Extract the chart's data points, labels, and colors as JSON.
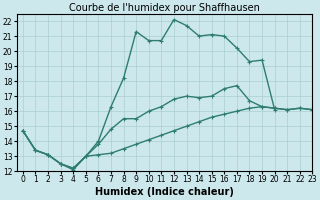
{
  "title": "Courbe de l'humidex pour Shaffhausen",
  "xlabel": "Humidex (Indice chaleur)",
  "xlim": [
    -0.5,
    23
  ],
  "ylim": [
    12,
    22.5
  ],
  "xticks": [
    0,
    1,
    2,
    3,
    4,
    5,
    6,
    7,
    8,
    9,
    10,
    11,
    12,
    13,
    14,
    15,
    16,
    17,
    18,
    19,
    20,
    21,
    22,
    23
  ],
  "yticks": [
    12,
    13,
    14,
    15,
    16,
    17,
    18,
    19,
    20,
    21,
    22
  ],
  "line_color": "#2e7d6e",
  "bg_color": "#cce8ec",
  "grid_color": "#aacdd2",
  "line1_x": [
    0,
    1,
    2,
    3,
    4,
    5,
    6,
    7,
    8,
    9,
    10,
    11,
    12,
    13,
    14,
    15,
    16,
    17,
    18,
    19,
    20
  ],
  "line1_y": [
    14.7,
    13.4,
    13.1,
    12.5,
    12.1,
    13.0,
    14.0,
    16.3,
    18.2,
    21.3,
    20.7,
    20.7,
    22.1,
    21.7,
    21.0,
    21.1,
    21.0,
    20.2,
    19.3,
    19.4,
    16.1
  ],
  "line2_x": [
    0,
    1,
    2,
    3,
    4,
    5,
    6,
    7,
    8,
    9,
    10,
    11,
    12,
    13,
    14,
    15,
    16,
    17,
    18,
    19,
    20,
    21,
    22,
    23
  ],
  "line2_y": [
    14.7,
    13.4,
    13.1,
    12.5,
    12.2,
    13.0,
    13.1,
    13.2,
    13.5,
    13.8,
    14.1,
    14.4,
    14.7,
    15.0,
    15.3,
    15.6,
    15.8,
    16.0,
    16.2,
    16.3,
    16.2,
    16.1,
    16.2,
    16.1
  ],
  "line3_x": [
    0,
    1,
    2,
    3,
    4,
    5,
    6,
    7,
    8,
    9,
    10,
    11,
    12,
    13,
    14,
    15,
    16,
    17,
    18,
    19,
    20,
    21,
    22,
    23
  ],
  "line3_y": [
    14.7,
    13.4,
    13.1,
    12.5,
    12.2,
    13.0,
    13.8,
    14.8,
    15.5,
    15.5,
    16.0,
    16.3,
    16.8,
    17.0,
    16.9,
    17.0,
    17.5,
    17.7,
    16.7,
    16.3,
    16.2,
    16.1,
    16.2,
    16.1
  ],
  "title_fontsize": 7,
  "tick_fontsize": 5.5,
  "label_fontsize": 7,
  "line_width": 1.0,
  "marker_size": 3.5
}
